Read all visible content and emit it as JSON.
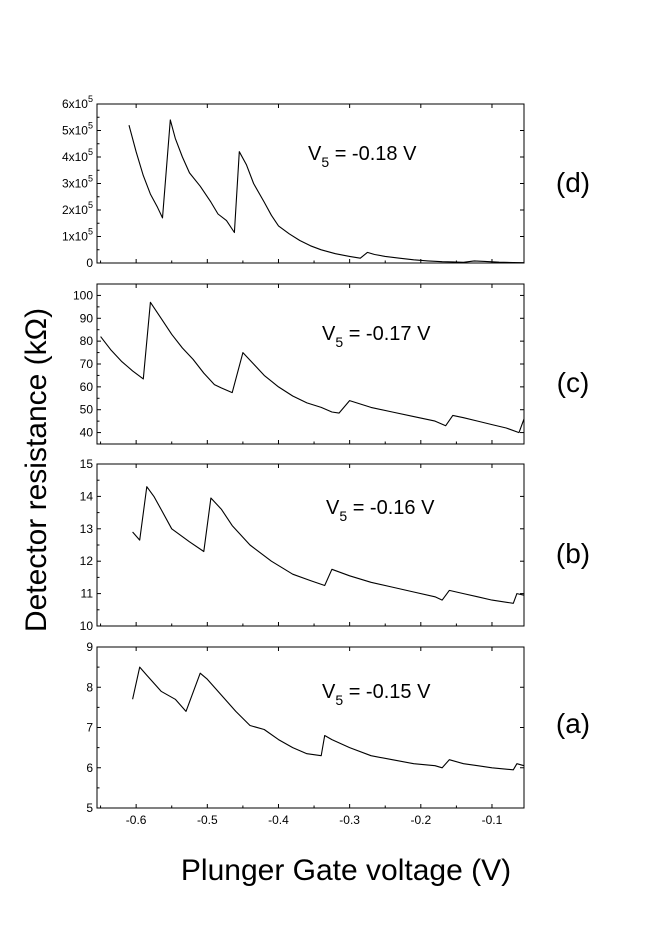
{
  "figure": {
    "ylabel": "Detector resistance (kΩ)",
    "xlabel": "Plunger Gate voltage (V)",
    "xlim": [
      -0.655,
      -0.055
    ],
    "xticks": [
      -0.6,
      -0.5,
      -0.4,
      -0.3,
      -0.2,
      -0.1
    ],
    "xtick_labels": [
      "-0.6",
      "-0.5",
      "-0.4",
      "-0.3",
      "-0.2",
      "-0.1"
    ]
  },
  "chart_data": [
    {
      "type": "line",
      "panel": "(d)",
      "annotation": {
        "prefix": "V",
        "subscript": "5",
        "suffix": " = -0.18 V"
      },
      "ylim": [
        0,
        600000
      ],
      "yticks": [
        0,
        100000,
        200000,
        300000,
        400000,
        500000,
        600000
      ],
      "ytick_labels": [
        {
          "base": "0",
          "exp": ""
        },
        {
          "base": "1x10",
          "exp": "5"
        },
        {
          "base": "2x10",
          "exp": "5"
        },
        {
          "base": "3x10",
          "exp": "5"
        },
        {
          "base": "4x10",
          "exp": "5"
        },
        {
          "base": "5x10",
          "exp": "5"
        },
        {
          "base": "6x10",
          "exp": "5"
        }
      ],
      "x": [
        -0.61,
        -0.6,
        -0.59,
        -0.58,
        -0.57,
        -0.563,
        -0.552,
        -0.545,
        -0.535,
        -0.525,
        -0.51,
        -0.495,
        -0.485,
        -0.473,
        -0.462,
        -0.455,
        -0.445,
        -0.435,
        -0.42,
        -0.41,
        -0.4,
        -0.385,
        -0.37,
        -0.355,
        -0.34,
        -0.32,
        -0.3,
        -0.285,
        -0.275,
        -0.265,
        -0.25,
        -0.23,
        -0.21,
        -0.19,
        -0.17,
        -0.155,
        -0.14,
        -0.125,
        -0.11,
        -0.09,
        -0.07,
        -0.055
      ],
      "values": [
        520000,
        420000,
        330000,
        260000,
        210000,
        170000,
        540000,
        470000,
        400000,
        340000,
        290000,
        230000,
        185000,
        160000,
        115000,
        420000,
        370000,
        300000,
        230000,
        180000,
        140000,
        110000,
        85000,
        65000,
        50000,
        35000,
        25000,
        18000,
        40000,
        32000,
        25000,
        18000,
        12000,
        8000,
        5000,
        4000,
        2500,
        8000,
        6000,
        3000,
        2000,
        1000
      ]
    },
    {
      "type": "line",
      "panel": "(c)",
      "annotation": {
        "prefix": "V",
        "subscript": "5",
        "suffix": " = -0.17 V"
      },
      "ylim": [
        35,
        105
      ],
      "yticks": [
        40,
        50,
        60,
        70,
        80,
        90,
        100
      ],
      "ytick_labels": [
        "40",
        "50",
        "60",
        "70",
        "80",
        "90",
        "100"
      ],
      "x": [
        -0.65,
        -0.635,
        -0.62,
        -0.605,
        -0.59,
        -0.58,
        -0.565,
        -0.55,
        -0.535,
        -0.52,
        -0.505,
        -0.49,
        -0.48,
        -0.465,
        -0.45,
        -0.435,
        -0.42,
        -0.4,
        -0.38,
        -0.36,
        -0.34,
        -0.325,
        -0.315,
        -0.3,
        -0.27,
        -0.24,
        -0.21,
        -0.18,
        -0.165,
        -0.155,
        -0.14,
        -0.12,
        -0.1,
        -0.08,
        -0.062,
        -0.055
      ],
      "values": [
        82,
        76,
        71,
        67,
        63.5,
        97,
        90,
        83,
        77,
        72,
        66,
        61,
        59.5,
        57.5,
        75,
        70,
        65,
        60,
        56,
        53,
        51,
        49,
        48.5,
        54,
        51,
        49,
        47,
        45,
        43,
        47.5,
        46.5,
        45,
        43.5,
        42,
        40,
        46
      ]
    },
    {
      "type": "line",
      "panel": "(b)",
      "annotation": {
        "prefix": "V",
        "subscript": "5",
        "suffix": " = -0.16 V"
      },
      "ylim": [
        10,
        15
      ],
      "yticks": [
        10,
        11,
        12,
        13,
        14,
        15
      ],
      "ytick_labels": [
        "10",
        "11",
        "12",
        "13",
        "14",
        "15"
      ],
      "x": [
        -0.605,
        -0.595,
        -0.585,
        -0.575,
        -0.565,
        -0.55,
        -0.525,
        -0.505,
        -0.495,
        -0.48,
        -0.465,
        -0.44,
        -0.41,
        -0.38,
        -0.355,
        -0.335,
        -0.325,
        -0.3,
        -0.27,
        -0.24,
        -0.21,
        -0.18,
        -0.17,
        -0.16,
        -0.14,
        -0.12,
        -0.1,
        -0.07,
        -0.065,
        -0.055
      ],
      "values": [
        12.9,
        12.65,
        14.3,
        14.0,
        13.6,
        13.0,
        12.6,
        12.3,
        13.95,
        13.6,
        13.1,
        12.5,
        12.0,
        11.6,
        11.4,
        11.25,
        11.75,
        11.55,
        11.35,
        11.2,
        11.05,
        10.9,
        10.8,
        11.1,
        11.0,
        10.9,
        10.8,
        10.7,
        11.0,
        10.95
      ]
    },
    {
      "type": "line",
      "panel": "(a)",
      "annotation": {
        "prefix": "V",
        "subscript": "5",
        "suffix": " = -0.15 V"
      },
      "ylim": [
        5,
        9
      ],
      "yticks": [
        5,
        6,
        7,
        8,
        9
      ],
      "ytick_labels": [
        "5",
        "6",
        "7",
        "8",
        "9"
      ],
      "x": [
        -0.605,
        -0.595,
        -0.585,
        -0.565,
        -0.545,
        -0.53,
        -0.51,
        -0.5,
        -0.48,
        -0.46,
        -0.44,
        -0.42,
        -0.4,
        -0.38,
        -0.36,
        -0.34,
        -0.335,
        -0.325,
        -0.3,
        -0.27,
        -0.24,
        -0.21,
        -0.18,
        -0.17,
        -0.16,
        -0.14,
        -0.12,
        -0.1,
        -0.07,
        -0.065,
        -0.055
      ],
      "values": [
        7.7,
        8.5,
        8.3,
        7.9,
        7.7,
        7.4,
        8.35,
        8.2,
        7.8,
        7.4,
        7.05,
        6.95,
        6.7,
        6.5,
        6.35,
        6.3,
        6.8,
        6.7,
        6.5,
        6.3,
        6.2,
        6.1,
        6.05,
        6.0,
        6.2,
        6.1,
        6.05,
        6.0,
        5.95,
        6.1,
        6.05
      ]
    }
  ]
}
